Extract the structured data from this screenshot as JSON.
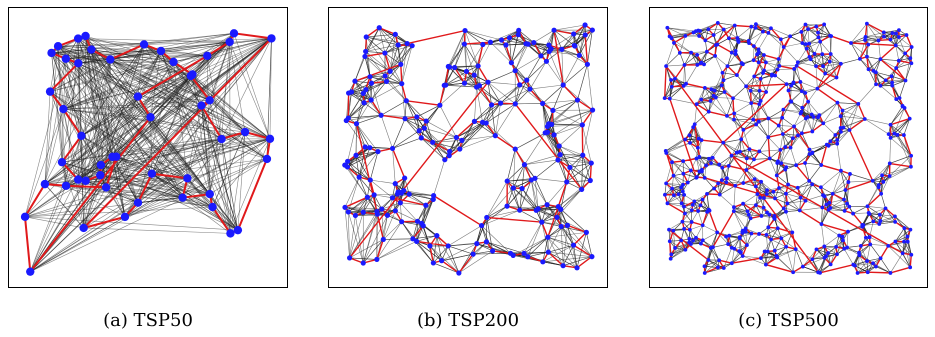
{
  "figure": {
    "panels": [
      {
        "id": "a",
        "caption": "(a) TSP50",
        "nodes": 50
      },
      {
        "id": "b",
        "caption": "(b) TSP200",
        "nodes": 200
      },
      {
        "id": "c",
        "caption": "(c) TSP500",
        "nodes": 500
      }
    ],
    "colors": {
      "node": "#1a1aff",
      "tour_edge": "#e0191b",
      "candidate_edge": "#222222"
    }
  }
}
